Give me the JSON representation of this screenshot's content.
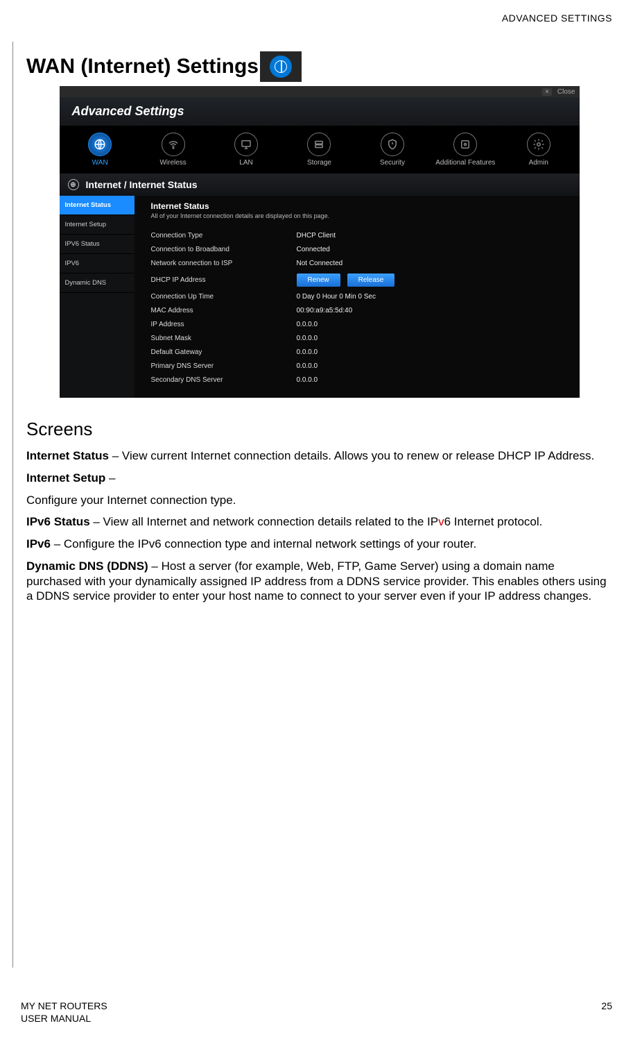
{
  "header": {
    "section_label": "ADVANCED SETTINGS"
  },
  "title": "WAN (Internet) Settings",
  "screenshot": {
    "close_label": "Close",
    "banner": "Advanced Settings",
    "nav": [
      {
        "label": "WAN",
        "active": true
      },
      {
        "label": "Wireless",
        "active": false
      },
      {
        "label": "LAN",
        "active": false
      },
      {
        "label": "Storage",
        "active": false
      },
      {
        "label": "Security",
        "active": false
      },
      {
        "label": "Additional Features",
        "active": false
      },
      {
        "label": "Admin",
        "active": false
      }
    ],
    "breadcrumb": "Internet / Internet Status",
    "sidebar": [
      {
        "label": "Internet Status",
        "active": true
      },
      {
        "label": "Internet Setup",
        "active": false
      },
      {
        "label": "IPV6 Status",
        "active": false
      },
      {
        "label": "IPV6",
        "active": false
      },
      {
        "label": "Dynamic DNS",
        "active": false
      }
    ],
    "pane": {
      "title": "Internet Status",
      "subtitle": "All of your Internet connection details are displayed on this page.",
      "rows": [
        {
          "label": "Connection Type",
          "value": "DHCP Client"
        },
        {
          "label": "Connection to Broadband",
          "value": "Connected"
        },
        {
          "label": "Network connection to ISP",
          "value": "Not Connected"
        },
        {
          "label": "DHCP IP Address",
          "value": "__buttons__"
        },
        {
          "label": "Connection Up Time",
          "value": "0 Day 0 Hour 0 Min 0 Sec"
        },
        {
          "label": "MAC Address",
          "value": "00:90:a9:a5:5d:40"
        },
        {
          "label": "IP Address",
          "value": "0.0.0.0"
        },
        {
          "label": "Subnet Mask",
          "value": "0.0.0.0"
        },
        {
          "label": "Default Gateway",
          "value": "0.0.0.0"
        },
        {
          "label": "Primary DNS Server",
          "value": "0.0.0.0"
        },
        {
          "label": "Secondary DNS Server",
          "value": "0.0.0.0"
        }
      ],
      "buttons": {
        "renew": "Renew",
        "release": "Release"
      }
    }
  },
  "body": {
    "screens_heading": "Screens",
    "items": [
      {
        "bold": "Internet Status",
        "text": " – View current Internet connection details. Allows you to renew or release DHCP IP Address."
      },
      {
        "bold": "Internet Setup",
        "text": " –"
      },
      {
        "plain": "Configure your Internet connection type."
      },
      {
        "bold": "IPv6 Status",
        "text_pre": " – View all Internet and network connection details related to the IP",
        "v6": "v",
        "text_post": "6 Internet protocol."
      },
      {
        "bold": "IPv6",
        "text": " – Configure the IPv6 connection type and internal network settings of your router."
      },
      {
        "bold": "Dynamic DNS (DDNS)",
        "text": " – Host a server (for example, Web, FTP, Game Server) using a domain name purchased with your dynamically assigned IP address from a DDNS service provider. This enables others using a DDNS service provider to enter your host name to connect to your server even if your IP address changes."
      }
    ]
  },
  "footer": {
    "line1": "MY NET ROUTERS",
    "line2": "USER MANUAL",
    "page": "25"
  },
  "colors": {
    "accent": "#1a8cff",
    "link_red": "#d00000"
  }
}
